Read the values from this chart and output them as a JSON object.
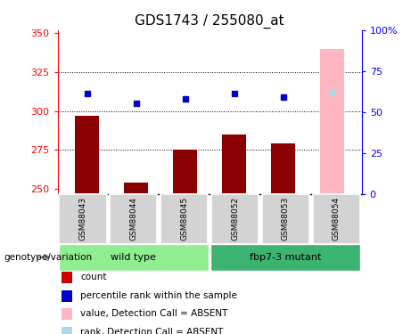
{
  "title": "GDS1743 / 255080_at",
  "samples": [
    "GSM88043",
    "GSM88044",
    "GSM88045",
    "GSM88052",
    "GSM88053",
    "GSM88054"
  ],
  "bar_values": [
    297,
    254,
    275,
    285,
    279,
    340
  ],
  "bar_colors": [
    "#8B0000",
    "#8B0000",
    "#8B0000",
    "#8B0000",
    "#8B0000",
    "#FFB6C1"
  ],
  "dot_values_left": [
    311,
    305,
    308,
    311,
    309,
    312
  ],
  "dot_colors": [
    "#0000CC",
    "#0000CC",
    "#0000CC",
    "#0000CC",
    "#0000CC",
    "#ADD8E6"
  ],
  "ylim_left": [
    247,
    352
  ],
  "ylim_right": [
    0,
    100
  ],
  "yticks_left": [
    250,
    275,
    300,
    325,
    350
  ],
  "yticks_right": [
    0,
    25,
    50,
    75,
    100
  ],
  "yticklabels_right": [
    "0",
    "25",
    "50",
    "75",
    "100%"
  ],
  "hlines": [
    275,
    300,
    325
  ],
  "group_ranges": [
    [
      0,
      2
    ],
    [
      3,
      5
    ]
  ],
  "group_labels": [
    "wild type",
    "fbp7-3 mutant"
  ],
  "group_color_light": "#90EE90",
  "group_color_dark": "#3CB371",
  "sample_box_color": "#D3D3D3",
  "xlabel_area": "genotype/variation",
  "legend": [
    {
      "label": "count",
      "color": "#CC0000"
    },
    {
      "label": "percentile rank within the sample",
      "color": "#0000CC"
    },
    {
      "label": "value, Detection Call = ABSENT",
      "color": "#FFB6C1"
    },
    {
      "label": "rank, Detection Call = ABSENT",
      "color": "#ADD8E6"
    }
  ],
  "title_fontsize": 11,
  "tick_fontsize": 8,
  "bar_width": 0.5
}
